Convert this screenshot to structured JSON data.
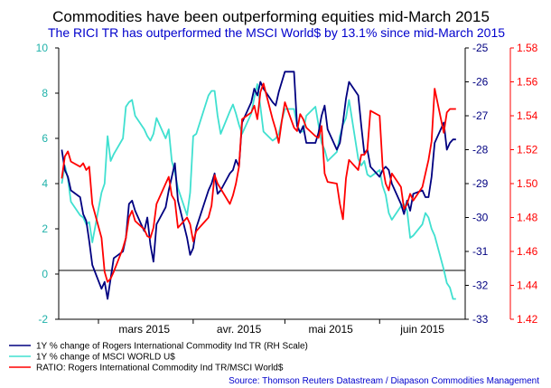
{
  "chart_data": {
    "type": "line",
    "title": "Commodities have been outperforming equities mid-March 2015",
    "subtitle": "The RICI TR has outperformed the MSCI World$ by 13.1% since mid-March 2015",
    "source": "Source: Thomson Reuters Datastream / Diapason Commodities Management",
    "x_labels": [
      "mars 2015",
      "avr. 2015",
      "mai 2015",
      "juin 2015"
    ],
    "x_range": [
      "2015-02-16",
      "2015-06-29"
    ],
    "axes": {
      "left": {
        "ylim": [
          -2,
          10
        ],
        "ticks": [
          -2,
          0,
          2,
          4,
          6,
          8,
          10
        ],
        "color": "#20b2aa"
      },
      "right1": {
        "ylim": [
          -33,
          -25
        ],
        "ticks": [
          -33,
          -32,
          -31,
          -30,
          -29,
          -28,
          -27,
          -26,
          -25
        ],
        "color": "#000080"
      },
      "right2": {
        "ylim": [
          1.42,
          1.58
        ],
        "ticks": [
          1.42,
          1.44,
          1.46,
          1.48,
          1.5,
          1.52,
          1.54,
          1.56,
          1.58
        ],
        "labels": [
          "1.42",
          "1.44",
          "1.46",
          "1.48",
          "1.50",
          "1.52",
          "1.54",
          "1.56",
          "1.58"
        ],
        "color": "#ff0000"
      }
    },
    "grid": false,
    "legend_placement": "bottom-left",
    "series": [
      {
        "name": "1Y % change of Rogers International Commodity Ind TR (RH Scale)",
        "axis": "right1",
        "color": "#000080",
        "x": [
          "2015-02-17",
          "2015-02-18",
          "2015-02-19",
          "2015-02-20",
          "2015-02-23",
          "2015-02-24",
          "2015-02-25",
          "2015-02-26",
          "2015-02-27",
          "2015-03-02",
          "2015-03-03",
          "2015-03-04",
          "2015-03-05",
          "2015-03-06",
          "2015-03-09",
          "2015-03-10",
          "2015-03-11",
          "2015-03-12",
          "2015-03-13",
          "2015-03-16",
          "2015-03-17",
          "2015-03-18",
          "2015-03-19",
          "2015-03-20",
          "2015-03-23",
          "2015-03-24",
          "2015-03-25",
          "2015-03-26",
          "2015-03-27",
          "2015-03-30",
          "2015-03-31",
          "2015-04-01",
          "2015-04-02",
          "2015-04-06",
          "2015-04-07",
          "2015-04-08",
          "2015-04-09",
          "2015-04-10",
          "2015-04-13",
          "2015-04-14",
          "2015-04-15",
          "2015-04-16",
          "2015-04-17",
          "2015-04-20",
          "2015-04-21",
          "2015-04-22",
          "2015-04-23",
          "2015-04-24",
          "2015-04-27",
          "2015-04-28",
          "2015-04-29",
          "2015-04-30",
          "2015-05-01",
          "2015-05-04",
          "2015-05-05",
          "2015-05-06",
          "2015-05-07",
          "2015-05-08",
          "2015-05-11",
          "2015-05-12",
          "2015-05-13",
          "2015-05-14",
          "2015-05-15",
          "2015-05-18",
          "2015-05-19",
          "2015-05-20",
          "2015-05-21",
          "2015-05-22",
          "2015-05-25",
          "2015-05-26",
          "2015-05-27",
          "2015-05-28",
          "2015-05-29",
          "2015-06-01",
          "2015-06-02",
          "2015-06-03",
          "2015-06-04",
          "2015-06-05",
          "2015-06-08",
          "2015-06-09",
          "2015-06-10",
          "2015-06-11",
          "2015-06-12",
          "2015-06-15",
          "2015-06-16",
          "2015-06-17",
          "2015-06-18",
          "2015-06-19",
          "2015-06-22",
          "2015-06-23",
          "2015-06-24",
          "2015-06-25",
          "2015-06-26"
        ],
        "values": [
          -28.0,
          -28.6,
          -28.8,
          -29.2,
          -29.4,
          -29.9,
          -30.1,
          -30.7,
          -31.4,
          -32.1,
          -31.9,
          -32.4,
          -31.8,
          -31.2,
          -31.0,
          -30.6,
          -29.6,
          -29.5,
          -29.8,
          -30.4,
          -30.0,
          -30.8,
          -31.3,
          -30.2,
          -29.7,
          -29.2,
          -28.8,
          -28.4,
          -29.5,
          -30.6,
          -31.1,
          -30.9,
          -30.3,
          -29.2,
          -29.0,
          -28.7,
          -29.3,
          -29.2,
          -28.7,
          -28.6,
          -28.3,
          -28.5,
          -27.2,
          -26.6,
          -26.2,
          -26.4,
          -26.0,
          -26.2,
          -26.6,
          -26.7,
          -26.3,
          -26.0,
          -25.7,
          -25.7,
          -27.3,
          -27.5,
          -27.3,
          -27.8,
          -27.8,
          -27.5,
          -27.0,
          -26.7,
          -27.4,
          -28.0,
          -27.8,
          -27.2,
          -26.5,
          -26.0,
          -26.4,
          -27.3,
          -28.1,
          -28.0,
          -28.5,
          -28.8,
          -28.6,
          -28.5,
          -28.6,
          -29.0,
          -29.6,
          -29.9,
          -29.5,
          -29.8,
          -29.3,
          -29.2,
          -29.4,
          -29.4,
          -28.8,
          -27.8,
          -27.2,
          -28.0,
          -27.8,
          -27.7,
          -27.7
        ]
      },
      {
        "name": "1Y % change of MSCI WORLD U$",
        "axis": "left",
        "color": "#40e0d0",
        "x": [
          "2015-02-17",
          "2015-02-18",
          "2015-02-19",
          "2015-02-20",
          "2015-02-23",
          "2015-02-24",
          "2015-02-25",
          "2015-02-26",
          "2015-02-27",
          "2015-03-02",
          "2015-03-03",
          "2015-03-04",
          "2015-03-05",
          "2015-03-06",
          "2015-03-09",
          "2015-03-10",
          "2015-03-11",
          "2015-03-12",
          "2015-03-13",
          "2015-03-16",
          "2015-03-17",
          "2015-03-18",
          "2015-03-19",
          "2015-03-20",
          "2015-03-23",
          "2015-03-24",
          "2015-03-25",
          "2015-03-26",
          "2015-03-27",
          "2015-03-30",
          "2015-03-31",
          "2015-04-01",
          "2015-04-02",
          "2015-04-06",
          "2015-04-07",
          "2015-04-08",
          "2015-04-09",
          "2015-04-10",
          "2015-04-13",
          "2015-04-14",
          "2015-04-15",
          "2015-04-16",
          "2015-04-17",
          "2015-04-20",
          "2015-04-21",
          "2015-04-22",
          "2015-04-23",
          "2015-04-24",
          "2015-04-27",
          "2015-04-28",
          "2015-04-29",
          "2015-04-30",
          "2015-05-01",
          "2015-05-04",
          "2015-05-05",
          "2015-05-06",
          "2015-05-07",
          "2015-05-08",
          "2015-05-11",
          "2015-05-12",
          "2015-05-13",
          "2015-05-14",
          "2015-05-15",
          "2015-05-18",
          "2015-05-19",
          "2015-05-20",
          "2015-05-21",
          "2015-05-22",
          "2015-05-25",
          "2015-05-26",
          "2015-05-27",
          "2015-05-28",
          "2015-05-29",
          "2015-06-01",
          "2015-06-02",
          "2015-06-03",
          "2015-06-04",
          "2015-06-05",
          "2015-06-08",
          "2015-06-09",
          "2015-06-10",
          "2015-06-11",
          "2015-06-12",
          "2015-06-15",
          "2015-06-16",
          "2015-06-17",
          "2015-06-18",
          "2015-06-19",
          "2015-06-22",
          "2015-06-23",
          "2015-06-24",
          "2015-06-25",
          "2015-06-26"
        ],
        "values": [
          4.0,
          4.8,
          4.2,
          3.2,
          2.6,
          2.5,
          2.2,
          2.3,
          1.4,
          3.6,
          4.0,
          6.1,
          5.0,
          5.3,
          6.0,
          7.4,
          7.6,
          7.7,
          7.0,
          6.4,
          6.1,
          5.9,
          6.2,
          6.9,
          6.0,
          6.4,
          5.0,
          4.5,
          3.8,
          2.6,
          3.6,
          6.1,
          6.2,
          7.9,
          8.1,
          8.1,
          7.0,
          6.2,
          7.2,
          7.5,
          7.1,
          6.6,
          6.2,
          7.1,
          7.8,
          8.4,
          7.4,
          6.3,
          5.9,
          6.0,
          6.2,
          6.8,
          7.3,
          7.3,
          6.6,
          6.3,
          6.3,
          7.0,
          7.4,
          6.6,
          5.8,
          5.5,
          5.0,
          5.4,
          6.1,
          6.6,
          6.9,
          7.7,
          5.1,
          4.8,
          5.0,
          4.4,
          4.3,
          4.6,
          3.9,
          3.5,
          2.7,
          2.4,
          3.0,
          3.1,
          2.8,
          1.6,
          1.7,
          2.2,
          2.7,
          2.5,
          2.0,
          1.7,
          0.2,
          -0.4,
          -0.6,
          -1.1,
          -1.1
        ]
      },
      {
        "name": "RATIO: Rogers International Commodity Ind TR/MSCI World$",
        "axis": "right2",
        "color": "#ff0000",
        "x": [
          "2015-02-17",
          "2015-02-18",
          "2015-02-19",
          "2015-02-20",
          "2015-02-23",
          "2015-02-24",
          "2015-02-25",
          "2015-02-26",
          "2015-02-27",
          "2015-03-02",
          "2015-03-03",
          "2015-03-04",
          "2015-03-05",
          "2015-03-06",
          "2015-03-09",
          "2015-03-10",
          "2015-03-11",
          "2015-03-12",
          "2015-03-13",
          "2015-03-16",
          "2015-03-17",
          "2015-03-18",
          "2015-03-19",
          "2015-03-20",
          "2015-03-23",
          "2015-03-24",
          "2015-03-25",
          "2015-03-26",
          "2015-03-27",
          "2015-03-30",
          "2015-03-31",
          "2015-04-01",
          "2015-04-02",
          "2015-04-06",
          "2015-04-07",
          "2015-04-08",
          "2015-04-09",
          "2015-04-10",
          "2015-04-13",
          "2015-04-14",
          "2015-04-15",
          "2015-04-16",
          "2015-04-17",
          "2015-04-20",
          "2015-04-21",
          "2015-04-22",
          "2015-04-23",
          "2015-04-24",
          "2015-04-27",
          "2015-04-28",
          "2015-04-29",
          "2015-04-30",
          "2015-05-01",
          "2015-05-04",
          "2015-05-05",
          "2015-05-06",
          "2015-05-07",
          "2015-05-08",
          "2015-05-11",
          "2015-05-12",
          "2015-05-13",
          "2015-05-14",
          "2015-05-15",
          "2015-05-18",
          "2015-05-19",
          "2015-05-20",
          "2015-05-21",
          "2015-05-22",
          "2015-05-25",
          "2015-05-26",
          "2015-05-27",
          "2015-05-28",
          "2015-05-29",
          "2015-06-01",
          "2015-06-02",
          "2015-06-03",
          "2015-06-04",
          "2015-06-05",
          "2015-06-08",
          "2015-06-09",
          "2015-06-10",
          "2015-06-11",
          "2015-06-12",
          "2015-06-15",
          "2015-06-16",
          "2015-06-17",
          "2015-06-18",
          "2015-06-19",
          "2015-06-22",
          "2015-06-23",
          "2015-06-24",
          "2015-06-25",
          "2015-06-26"
        ],
        "values": [
          1.503,
          1.516,
          1.519,
          1.513,
          1.51,
          1.512,
          1.508,
          1.51,
          1.488,
          1.468,
          1.448,
          1.442,
          1.444,
          1.448,
          1.462,
          1.468,
          1.48,
          1.484,
          1.478,
          1.473,
          1.469,
          1.468,
          1.474,
          1.488,
          1.5,
          1.504,
          1.493,
          1.49,
          1.474,
          1.48,
          1.476,
          1.466,
          1.472,
          1.48,
          1.487,
          1.505,
          1.5,
          1.497,
          1.488,
          1.493,
          1.5,
          1.51,
          1.538,
          1.542,
          1.546,
          1.538,
          1.554,
          1.559,
          1.538,
          1.532,
          1.524,
          1.537,
          1.548,
          1.533,
          1.531,
          1.541,
          1.538,
          1.533,
          1.528,
          1.527,
          1.534,
          1.506,
          1.501,
          1.5,
          1.488,
          1.479,
          1.503,
          1.514,
          1.508,
          1.517,
          1.517,
          1.52,
          1.543,
          1.54,
          1.51,
          1.5,
          1.496,
          1.506,
          1.498,
          1.485,
          1.488,
          1.494,
          1.49,
          1.498,
          1.506,
          1.514,
          1.525,
          1.556,
          1.53,
          1.542,
          1.544,
          1.544,
          1.544
        ]
      }
    ]
  }
}
